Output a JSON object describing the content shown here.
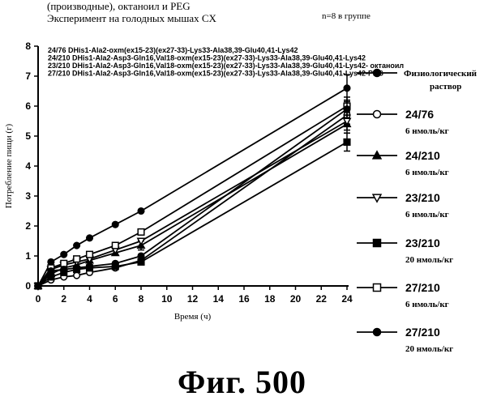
{
  "header": {
    "line1": "(производные), октаноил и PEG",
    "line2": "Эксперимент на голодных мышах CX",
    "n_label": "n=8 в группе"
  },
  "figure_label": "Фиг.  500",
  "chart_data": {
    "type": "line",
    "xlabel": "Время (ч)",
    "ylabel": "Потребление пищи (г)",
    "xlim": [
      0,
      24
    ],
    "ylim": [
      0,
      8
    ],
    "x_ticks": [
      0,
      2,
      4,
      6,
      8,
      10,
      12,
      14,
      16,
      18,
      20,
      22,
      24
    ],
    "y_ticks": [
      0,
      1,
      2,
      3,
      4,
      5,
      6,
      7,
      8
    ],
    "grid": false,
    "legend_position": "right",
    "sequence_labels": [
      "24/76 DHis1-Ala2-oxm(ex15-23)(ex27-33)-Lys33-Ala38,39-Glu40,41-Lys42",
      "24/210 DHis1-Ala2-Asp3-Gln16,Val18-oxm(ex15-23)(ex27-33)-Lys33-Ala38,39-Glu40,41-Lys42",
      "23/210 DHis1-Ala2-Asp3-Gln16,Val18-oxm(ex15-23)(ex27-33)-Lys33-Ala38,39-Glu40,41-Lys42- октаноил",
      "27/210 DHis1-Ala2-Asp3-Gln16,Val18-oxm(ex15-23)(ex27-33)-Lys33-Ala38,39-Glu40,41-Lys42-PEG"
    ],
    "x": [
      0,
      1,
      2,
      3,
      4,
      6,
      8,
      24
    ],
    "series": [
      {
        "label": "Физиологический",
        "dose": "раствор",
        "marker": "filled-circle",
        "values": [
          0,
          0.8,
          1.05,
          1.35,
          1.6,
          2.05,
          2.5,
          6.6
        ],
        "err": [
          0,
          0,
          0,
          0,
          0,
          0,
          0,
          0.45
        ]
      },
      {
        "label": "24/76",
        "dose": "6 нмоль/кг",
        "marker": "open-circle",
        "values": [
          0,
          0.2,
          0.3,
          0.35,
          0.45,
          0.6,
          0.85,
          5.7
        ],
        "err": [
          0,
          0,
          0,
          0,
          0,
          0,
          0,
          0.3
        ]
      },
      {
        "label": "24/210",
        "dose": "6 нмоль/кг",
        "marker": "filled-triangle-up",
        "values": [
          0,
          0.4,
          0.6,
          0.7,
          0.85,
          1.1,
          1.35,
          5.4
        ],
        "err": [
          0,
          0,
          0,
          0,
          0,
          0,
          0.15,
          0.3
        ]
      },
      {
        "label": "23/210",
        "dose": "6 нмоль/кг",
        "marker": "open-triangle-down",
        "values": [
          0,
          0.55,
          0.7,
          0.8,
          0.9,
          1.2,
          1.5,
          5.5
        ],
        "err": [
          0,
          0,
          0,
          0,
          0,
          0,
          0,
          0.3
        ]
      },
      {
        "label": "23/210",
        "dose": "20 нмоль/кг",
        "marker": "filled-square",
        "values": [
          0,
          0.3,
          0.45,
          0.55,
          0.6,
          0.65,
          0.8,
          4.8
        ],
        "err": [
          0,
          0,
          0,
          0,
          0,
          0,
          0,
          0.3
        ]
      },
      {
        "label": "27/210",
        "dose": "6 нмоль/кг",
        "marker": "open-square",
        "values": [
          0,
          0.6,
          0.75,
          0.9,
          1.05,
          1.35,
          1.8,
          6.0
        ],
        "err": [
          0,
          0,
          0,
          0,
          0,
          0,
          0,
          0.3
        ]
      },
      {
        "label": "27/210",
        "dose": "20 нмоль/кг",
        "marker": "filled-circle",
        "values": [
          0,
          0.5,
          0.55,
          0.6,
          0.65,
          0.75,
          1.0,
          5.9
        ],
        "err": [
          0,
          0,
          0,
          0,
          0,
          0,
          0,
          0.3
        ]
      }
    ]
  }
}
